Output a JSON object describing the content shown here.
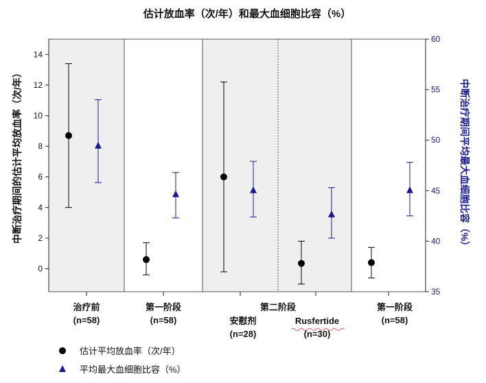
{
  "chart_data": {
    "type": "scatter",
    "title": "估计放血率（次/年）和最大血细胞比容（%）",
    "ylabel_left": "中断治疗期间的估计平均放血率（次/年）",
    "ylabel_right": "中断治疗期间平均最大血细胞比容（%）",
    "ylim_left": [
      -1.5,
      15
    ],
    "yticks_left": [
      "0",
      "2",
      "4",
      "6",
      "8",
      "10",
      "12",
      "14"
    ],
    "ylim_right": [
      35,
      60
    ],
    "yticks_right": [
      "35",
      "40",
      "45",
      "50",
      "55",
      "60"
    ],
    "groups": [
      {
        "label": "治疗前",
        "n": "(n=58)",
        "shaded": true
      },
      {
        "label": "第一阶段",
        "n": "(n=58)",
        "shaded": false
      },
      {
        "label": "安慰剂",
        "n": "(n=28)",
        "shaded": true
      },
      {
        "label": "Rusfertide",
        "n": "(n=30)",
        "shaded": true
      },
      {
        "label": "第一阶段",
        "n": "(n=58)",
        "shaded": false
      }
    ],
    "phase2_label": "第二阶段",
    "series": [
      {
        "name": "估计平均放血率（次/年）",
        "axis": "left",
        "marker": "circle",
        "color": "#000000",
        "values": [
          8.7,
          0.6,
          6.0,
          0.35,
          0.4
        ],
        "lower": [
          4.0,
          -0.4,
          -0.2,
          -1.0,
          -0.6
        ],
        "upper": [
          13.4,
          1.7,
          12.2,
          1.8,
          1.4
        ]
      },
      {
        "name": "平均最大血细胞比容（%）",
        "axis": "right",
        "marker": "triangle",
        "color": "#1a1a8c",
        "values": [
          49.5,
          44.7,
          45.1,
          42.7,
          45.1
        ],
        "lower": [
          45.8,
          42.3,
          42.4,
          40.3,
          42.5
        ],
        "upper": [
          54.0,
          46.8,
          47.9,
          45.3,
          47.8
        ]
      }
    ],
    "grid": false,
    "legend_position": "bottom-left"
  },
  "colors": {
    "shade": "#efefef",
    "right_axis": "#1a1a8c",
    "error_bar_right": "#1a1a8c",
    "error_bar_left": "#000000"
  }
}
